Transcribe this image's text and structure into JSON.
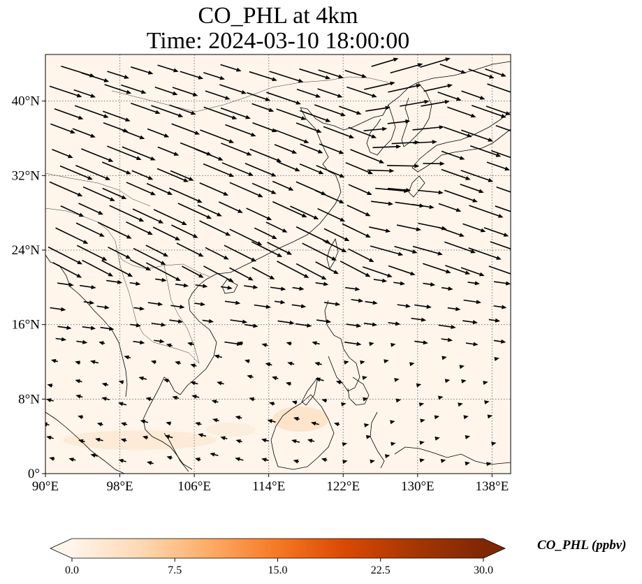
{
  "title": {
    "line1": "CO_PHL at 4km",
    "line2": "Time: 2024-03-10 18:00:00"
  },
  "map": {
    "lon_range": [
      90,
      140
    ],
    "lat_range": [
      0,
      45
    ],
    "lon_ticks": [
      {
        "value": 90,
        "label": "90°E"
      },
      {
        "value": 98,
        "label": "98°E"
      },
      {
        "value": 106,
        "label": "106°E"
      },
      {
        "value": 114,
        "label": "114°E"
      },
      {
        "value": 122,
        "label": "122°E"
      },
      {
        "value": 130,
        "label": "130°E"
      },
      {
        "value": 138,
        "label": "138°E"
      }
    ],
    "lat_ticks": [
      {
        "value": 0,
        "label": "0°"
      },
      {
        "value": 8,
        "label": "8°N"
      },
      {
        "value": 16,
        "label": "16°N"
      },
      {
        "value": 24,
        "label": "24°N"
      },
      {
        "value": 32,
        "label": "32°N"
      },
      {
        "value": 40,
        "label": "40°N"
      }
    ],
    "background_color": "#fff5eb",
    "gridlines": true
  },
  "colorbar": {
    "label": "CO_PHL (ppbv)",
    "min": 0,
    "max": 30,
    "ticks": [
      {
        "value": 0,
        "label": "0.0"
      },
      {
        "value": 7.5,
        "label": "7.5"
      },
      {
        "value": 15,
        "label": "15.0"
      },
      {
        "value": 22.5,
        "label": "22.5"
      },
      {
        "value": 30,
        "label": "30.0"
      }
    ],
    "colormap": [
      "#fff5eb",
      "#fdd8b3",
      "#fdac67",
      "#f67824",
      "#d94801",
      "#a63603",
      "#7f2704"
    ],
    "extend": "both"
  }
}
